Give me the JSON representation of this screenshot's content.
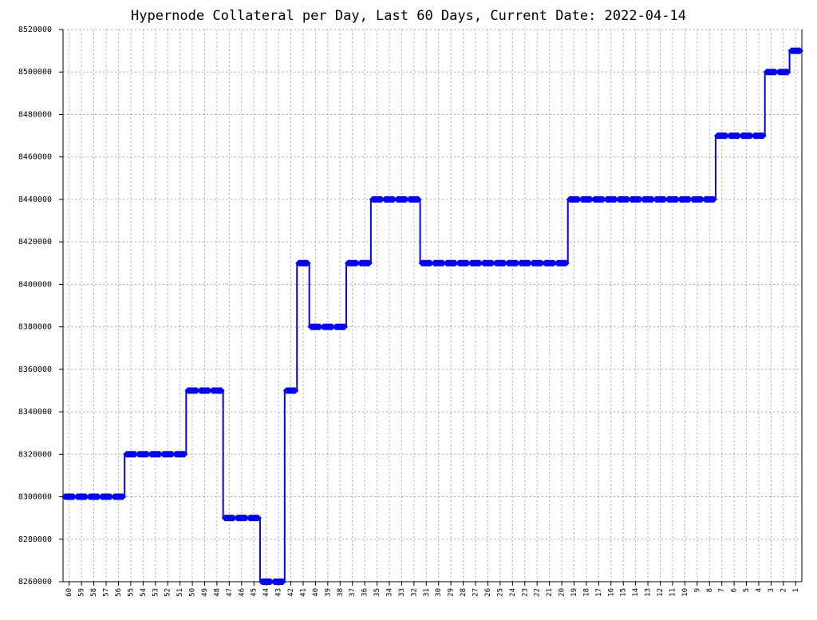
{
  "chart_data": {
    "type": "step-line",
    "title": "Hypernode Collateral per Day, Last 60 Days, Current Date: 2022-04-14",
    "categories": [
      "60",
      "59",
      "58",
      "57",
      "56",
      "55",
      "54",
      "53",
      "52",
      "51",
      "50",
      "49",
      "48",
      "47",
      "46",
      "45",
      "44",
      "43",
      "42",
      "41",
      "40",
      "39",
      "38",
      "37",
      "36",
      "35",
      "34",
      "33",
      "32",
      "31",
      "30",
      "29",
      "28",
      "27",
      "26",
      "25",
      "24",
      "23",
      "22",
      "21",
      "20",
      "19",
      "18",
      "17",
      "16",
      "15",
      "14",
      "13",
      "12",
      "11",
      "10",
      "9",
      "8",
      "7",
      "6",
      "5",
      "4",
      "3",
      "2",
      "1"
    ],
    "values": [
      8300000,
      8300000,
      8300000,
      8300000,
      8300000,
      8320000,
      8320000,
      8320000,
      8320000,
      8320000,
      8350000,
      8350000,
      8350000,
      8290000,
      8290000,
      8290000,
      8260000,
      8260000,
      8350000,
      8410000,
      8380000,
      8380000,
      8380000,
      8410000,
      8410000,
      8440000,
      8440000,
      8440000,
      8440000,
      8410000,
      8410000,
      8410000,
      8410000,
      8410000,
      8410000,
      8410000,
      8410000,
      8410000,
      8410000,
      8410000,
      8410000,
      8440000,
      8440000,
      8440000,
      8440000,
      8440000,
      8440000,
      8440000,
      8440000,
      8440000,
      8440000,
      8440000,
      8440000,
      8470000,
      8470000,
      8470000,
      8470000,
      8500000,
      8500000,
      8510000
    ],
    "color": "#0000ff",
    "ylim": [
      8260000,
      8520000
    ],
    "yticks": [
      8260000,
      8280000,
      8300000,
      8320000,
      8340000,
      8360000,
      8380000,
      8400000,
      8420000,
      8440000,
      8460000,
      8480000,
      8500000,
      8520000
    ],
    "grid": true
  }
}
